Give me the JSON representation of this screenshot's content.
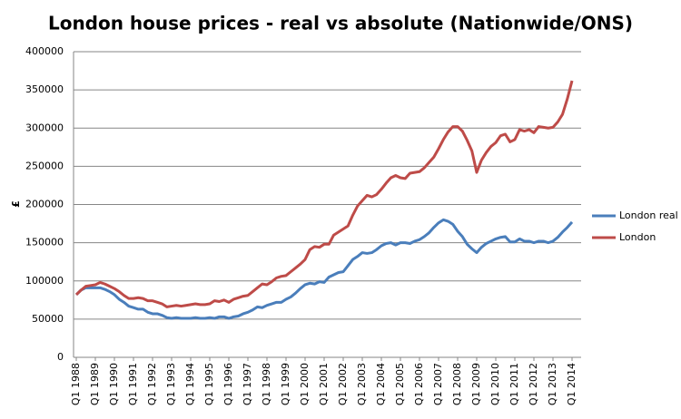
{
  "chart_data": {
    "type": "line",
    "title": "London house prices - real vs absolute (Nationwide/ONS)",
    "y_label": "£",
    "categories": [
      "Q1 1988",
      null,
      null,
      null,
      "Q1 1989",
      null,
      null,
      null,
      "Q1 1990",
      null,
      null,
      null,
      "Q1 1991",
      null,
      null,
      null,
      "Q1 1992",
      null,
      null,
      null,
      "Q1 1993",
      null,
      null,
      null,
      "Q1 1994",
      null,
      null,
      null,
      "Q1 1995",
      null,
      null,
      null,
      "Q1 1996",
      null,
      null,
      null,
      "Q1 1997",
      null,
      null,
      null,
      "Q1 1998",
      null,
      null,
      null,
      "Q1 1999",
      null,
      null,
      null,
      "Q1 2000",
      null,
      null,
      null,
      "Q1 2001",
      null,
      null,
      null,
      "Q1 2002",
      null,
      null,
      null,
      "Q1 2003",
      null,
      null,
      null,
      "Q1 2004",
      null,
      null,
      null,
      "Q1 2005",
      null,
      null,
      null,
      "Q1 2006",
      null,
      null,
      null,
      "Q1 2007",
      null,
      null,
      null,
      "Q1 2008",
      null,
      null,
      null,
      "Q1 2009",
      null,
      null,
      null,
      "Q1 2010",
      null,
      null,
      null,
      "Q1 2011",
      null,
      null,
      null,
      "Q1 2012",
      null,
      null,
      null,
      "Q1 2013",
      null,
      null,
      null,
      "Q1 2014"
    ],
    "series": [
      {
        "name": "London real",
        "color": "#4a7ebb",
        "values": [
          82000,
          88000,
          91000,
          91000,
          91000,
          91000,
          89000,
          86000,
          82000,
          76000,
          72000,
          67000,
          65000,
          63000,
          63000,
          59000,
          57000,
          57000,
          55000,
          52000,
          51000,
          52000,
          51000,
          51000,
          51000,
          52000,
          51000,
          51000,
          52000,
          51000,
          53000,
          53000,
          51000,
          53000,
          54000,
          57000,
          59000,
          62000,
          66000,
          65000,
          68000,
          70000,
          72000,
          72000,
          76000,
          79000,
          84000,
          90000,
          95000,
          97000,
          96000,
          99000,
          98000,
          105000,
          108000,
          111000,
          112000,
          120000,
          128000,
          132000,
          137000,
          136000,
          137000,
          141000,
          146000,
          149000,
          150000,
          147000,
          150000,
          150000,
          149000,
          152000,
          154000,
          158000,
          163000,
          170000,
          176000,
          180000,
          178000,
          174000,
          165000,
          158000,
          148000,
          142000,
          137000,
          144000,
          149000,
          152000,
          155000,
          157000,
          158000,
          151000,
          151000,
          155000,
          152000,
          152000,
          150000,
          152000,
          152000,
          150000,
          152000,
          157000,
          164000,
          170000,
          177000
        ]
      },
      {
        "name": "London",
        "color": "#be4b48",
        "values": [
          82000,
          88000,
          93000,
          94000,
          95000,
          98000,
          96000,
          93000,
          90000,
          86000,
          81000,
          77000,
          77000,
          78000,
          77000,
          74000,
          74000,
          72000,
          70000,
          66000,
          67000,
          68000,
          67000,
          68000,
          69000,
          70000,
          69000,
          69000,
          70000,
          74000,
          73000,
          75000,
          72000,
          76000,
          78000,
          80000,
          81000,
          86000,
          91000,
          96000,
          95000,
          99000,
          104000,
          106000,
          107000,
          112000,
          117000,
          122000,
          128000,
          141000,
          145000,
          144000,
          148000,
          148000,
          160000,
          164000,
          168000,
          172000,
          186000,
          198000,
          205000,
          212000,
          210000,
          213000,
          220000,
          228000,
          235000,
          238000,
          235000,
          234000,
          241000,
          242000,
          243000,
          248000,
          255000,
          262000,
          273000,
          285000,
          295000,
          302000,
          302000,
          296000,
          284000,
          270000,
          242000,
          258000,
          268000,
          276000,
          281000,
          290000,
          292000,
          282000,
          285000,
          298000,
          296000,
          298000,
          294000,
          302000,
          301000,
          300000,
          301000,
          308000,
          318000,
          338000,
          362000
        ]
      }
    ],
    "ylim": [
      0,
      400000
    ],
    "yticks": [
      0,
      50000,
      100000,
      150000,
      200000,
      250000,
      300000,
      350000,
      400000
    ],
    "grid": true,
    "legend": "right"
  }
}
